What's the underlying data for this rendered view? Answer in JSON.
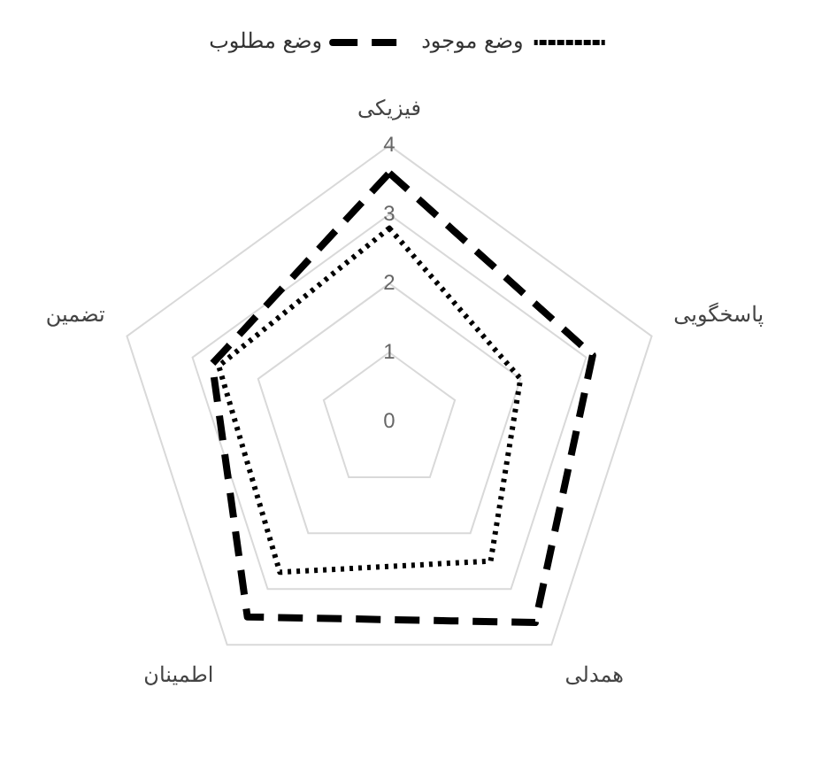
{
  "chart_data": {
    "type": "radar",
    "categories": [
      "فیزیکی",
      "پاسخگویی",
      "همدلی",
      "اطمینان",
      "تضمین"
    ],
    "series": [
      {
        "name": "وضع موجود",
        "color": "#000000",
        "values": [
          2.8,
          2,
          2.5,
          2.7,
          2.6
        ],
        "line_style": "dotted"
      },
      {
        "name": "وضع مطلوب",
        "color": "#000000",
        "values": [
          3.6,
          3.1,
          3.6,
          3.5,
          2.7
        ],
        "line_style": "dashed"
      }
    ],
    "ylim": [
      0,
      4
    ],
    "yticks": [
      0,
      1,
      2,
      3,
      4
    ],
    "grid": true,
    "legend": "top",
    "marker": "none"
  }
}
